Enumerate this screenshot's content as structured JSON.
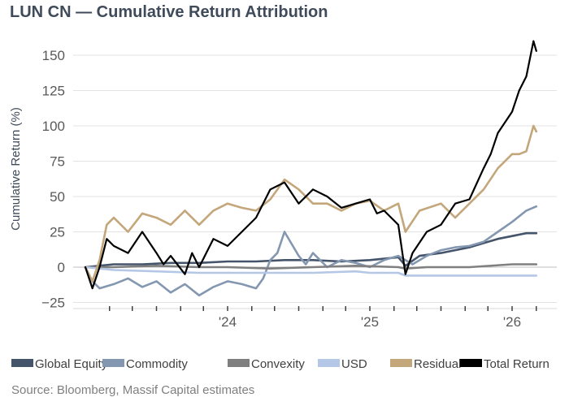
{
  "chart_data": {
    "type": "line",
    "title": "LUN CN — Cumulative Return Attribution",
    "ylabel": "Cumulative Return (%)",
    "xlabel": "",
    "ylim": [
      -25,
      160
    ],
    "yticks": [
      -25,
      0,
      25,
      50,
      75,
      100,
      125,
      150
    ],
    "ytick_labels": [
      "−25",
      "0",
      "25",
      "50",
      "75",
      "100",
      "125",
      "150"
    ],
    "xlim": [
      2023.0,
      2026.3
    ],
    "xtick_labels": [
      {
        "x": 2024.0,
        "label": "'24"
      },
      {
        "x": 2025.0,
        "label": "'25"
      },
      {
        "x": 2026.0,
        "label": "'26"
      }
    ],
    "x_minor_ticks": [
      2023.17,
      2023.33,
      2023.5,
      2023.67,
      2023.83,
      2024.0,
      2024.17,
      2024.33,
      2024.5,
      2024.67,
      2024.83,
      2025.0,
      2025.17,
      2025.33,
      2025.5,
      2025.67,
      2025.83,
      2026.0,
      2026.17
    ],
    "grid": true,
    "legend_position": "bottom",
    "series": [
      {
        "name": "Global Equity",
        "color": "#44546a",
        "x": [
          2023.0,
          2023.1,
          2023.2,
          2023.4,
          2023.6,
          2023.8,
          2024.0,
          2024.2,
          2024.4,
          2024.6,
          2024.8,
          2025.0,
          2025.1,
          2025.2,
          2025.25,
          2025.35,
          2025.5,
          2025.6,
          2025.7,
          2025.8,
          2025.9,
          2026.0,
          2026.1,
          2026.17
        ],
        "values": [
          0,
          1,
          2,
          2,
          3,
          3,
          4,
          4,
          5,
          5,
          4,
          5,
          6,
          7,
          1,
          8,
          10,
          12,
          14,
          17,
          20,
          22,
          24,
          24
        ]
      },
      {
        "name": "Commodity",
        "color": "#8497b0",
        "x": [
          2023.0,
          2023.05,
          2023.1,
          2023.2,
          2023.3,
          2023.4,
          2023.5,
          2023.6,
          2023.7,
          2023.8,
          2023.9,
          2024.0,
          2024.1,
          2024.2,
          2024.25,
          2024.3,
          2024.35,
          2024.4,
          2024.5,
          2024.55,
          2024.6,
          2024.7,
          2024.8,
          2024.9,
          2025.0,
          2025.1,
          2025.2,
          2025.3,
          2025.4,
          2025.5,
          2025.6,
          2025.7,
          2025.8,
          2025.9,
          2026.0,
          2026.1,
          2026.17
        ],
        "values": [
          0,
          -10,
          -15,
          -12,
          -8,
          -14,
          -10,
          -18,
          -12,
          -20,
          -14,
          -10,
          -12,
          -15,
          -8,
          5,
          10,
          25,
          8,
          2,
          10,
          0,
          5,
          3,
          0,
          5,
          8,
          2,
          8,
          12,
          14,
          15,
          18,
          25,
          32,
          40,
          43
        ]
      },
      {
        "name": "Convexity",
        "color": "#7f7f7f",
        "x": [
          2023.0,
          2023.2,
          2023.5,
          2023.8,
          2024.0,
          2024.3,
          2024.6,
          2024.9,
          2025.2,
          2025.25,
          2025.4,
          2025.7,
          2026.0,
          2026.17
        ],
        "values": [
          0,
          0,
          1,
          0,
          0,
          -1,
          0,
          1,
          0,
          -1,
          0,
          0,
          2,
          2
        ]
      },
      {
        "name": "USD",
        "color": "#b4c7e7",
        "x": [
          2023.0,
          2023.2,
          2023.5,
          2023.8,
          2024.0,
          2024.3,
          2024.6,
          2024.9,
          2025.0,
          2025.2,
          2025.25,
          2025.5,
          2025.8,
          2026.0,
          2026.17
        ],
        "values": [
          0,
          -2,
          -3,
          -4,
          -4,
          -4,
          -4,
          -3,
          -4,
          -4,
          -6,
          -6,
          -6,
          -6,
          -6
        ]
      },
      {
        "name": "Residual",
        "color": "#c4a67b",
        "x": [
          2023.0,
          2023.05,
          2023.1,
          2023.15,
          2023.2,
          2023.3,
          2023.4,
          2023.5,
          2023.6,
          2023.7,
          2023.8,
          2023.9,
          2024.0,
          2024.1,
          2024.2,
          2024.3,
          2024.4,
          2024.5,
          2024.6,
          2024.7,
          2024.8,
          2024.9,
          2025.0,
          2025.1,
          2025.2,
          2025.25,
          2025.35,
          2025.5,
          2025.6,
          2025.7,
          2025.8,
          2025.9,
          2026.0,
          2026.05,
          2026.1,
          2026.15,
          2026.17
        ],
        "values": [
          0,
          -10,
          5,
          30,
          35,
          25,
          38,
          35,
          30,
          40,
          30,
          40,
          45,
          42,
          40,
          48,
          62,
          55,
          45,
          45,
          40,
          45,
          47,
          40,
          45,
          25,
          40,
          45,
          35,
          45,
          55,
          70,
          80,
          80,
          82,
          100,
          96
        ]
      },
      {
        "name": "Total Return",
        "color": "#000000",
        "x": [
          2023.0,
          2023.05,
          2023.1,
          2023.15,
          2023.2,
          2023.3,
          2023.4,
          2023.5,
          2023.55,
          2023.6,
          2023.7,
          2023.75,
          2023.8,
          2023.9,
          2024.0,
          2024.1,
          2024.2,
          2024.3,
          2024.4,
          2024.5,
          2024.6,
          2024.7,
          2024.8,
          2024.9,
          2025.0,
          2025.05,
          2025.1,
          2025.2,
          2025.25,
          2025.3,
          2025.4,
          2025.5,
          2025.6,
          2025.7,
          2025.8,
          2025.85,
          2025.9,
          2026.0,
          2026.05,
          2026.1,
          2026.15,
          2026.17
        ],
        "values": [
          0,
          -15,
          0,
          20,
          15,
          10,
          25,
          10,
          2,
          8,
          -5,
          10,
          0,
          20,
          15,
          25,
          35,
          55,
          60,
          45,
          55,
          50,
          42,
          45,
          48,
          38,
          40,
          30,
          -5,
          10,
          25,
          30,
          45,
          48,
          70,
          80,
          95,
          110,
          125,
          135,
          160,
          153
        ]
      }
    ],
    "source": "Source: Bloomberg, Massif Capital estimates"
  }
}
